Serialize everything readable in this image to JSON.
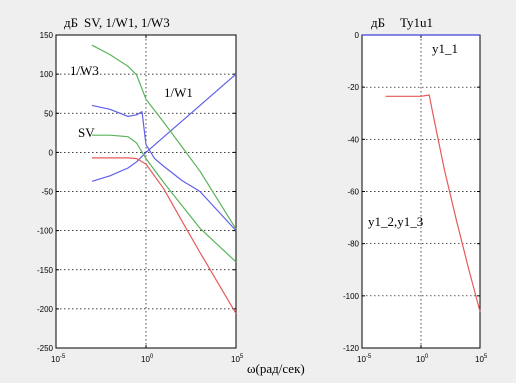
{
  "x_label": "ω(рад/сек)",
  "chart_data": [
    {
      "type": "line",
      "title": "SV, 1/W1, 1/W3",
      "ylabel_unit": "дБ",
      "xscale": "log",
      "xlim": [
        1e-05,
        100000.0
      ],
      "ylim": [
        -250,
        150
      ],
      "yticks": [
        150,
        100,
        50,
        0,
        -50,
        -100,
        -150,
        -200,
        -250
      ],
      "xticks": [
        {
          "base": "10",
          "exp": "-5"
        },
        {
          "base": "10",
          "exp": "0"
        },
        {
          "base": "10",
          "exp": "5"
        }
      ],
      "grid": true,
      "annotations": [
        "1/W3",
        "1/W1",
        "SV"
      ],
      "series": [
        {
          "color": "#6060e6",
          "x": [
            0.001,
            0.01,
            0.1,
            0.3,
            0.6,
            1,
            3,
            10,
            100,
            1000,
            100000
          ],
          "y": [
            60,
            55,
            46,
            48,
            52,
            10,
            -8,
            -18,
            -36,
            -50,
            -100
          ]
        },
        {
          "color": "#6060e6",
          "x": [
            0.001,
            0.01,
            0.1,
            0.3,
            1,
            10,
            100,
            1000,
            100000
          ],
          "y": [
            -37,
            -30,
            -20,
            -12,
            0,
            20,
            40,
            60,
            100
          ]
        },
        {
          "color": "#5ab45a",
          "x": [
            0.001,
            0.01,
            0.1,
            0.3,
            1,
            10,
            100,
            1000,
            100000
          ],
          "y": [
            137,
            125,
            110,
            99,
            68,
            38,
            7,
            -24,
            -98
          ]
        },
        {
          "color": "#5ab45a",
          "x": [
            0.001,
            0.01,
            0.1,
            0.3,
            1,
            10,
            100,
            1000,
            100000
          ],
          "y": [
            22,
            22,
            20,
            12,
            -8,
            -39,
            -68,
            -97,
            -140
          ]
        },
        {
          "color": "#e65a5a",
          "x": [
            0.001,
            0.01,
            0.1,
            0.3,
            1,
            10,
            100,
            1000,
            100000
          ],
          "y": [
            -7,
            -7,
            -7,
            -8,
            -15,
            -47,
            -88,
            -128,
            -206
          ]
        }
      ]
    },
    {
      "type": "line",
      "title": "Ty1u1",
      "ylabel_unit": "дБ",
      "xscale": "log",
      "xlim": [
        1e-05,
        100000.0
      ],
      "ylim": [
        -120,
        0
      ],
      "yticks": [
        0,
        -20,
        -40,
        -60,
        -80,
        -100,
        -120
      ],
      "xticks": [
        {
          "base": "10",
          "exp": "-5"
        },
        {
          "base": "10",
          "exp": "0"
        },
        {
          "base": "10",
          "exp": "5"
        }
      ],
      "grid": true,
      "annotations": [
        "y1_1",
        "y1_2,y1_3"
      ],
      "series": [
        {
          "color": "#4040e0",
          "x": [
            1e-05,
            100000
          ],
          "y": [
            0,
            0
          ]
        },
        {
          "color": "#e65a5a",
          "x": [
            0.001,
            0.1,
            1,
            5,
            10,
            100,
            1000,
            10000,
            100000
          ],
          "y": [
            -23.5,
            -23.5,
            -23.5,
            -23,
            -30,
            -52,
            -71,
            -89,
            -106
          ]
        }
      ]
    }
  ]
}
